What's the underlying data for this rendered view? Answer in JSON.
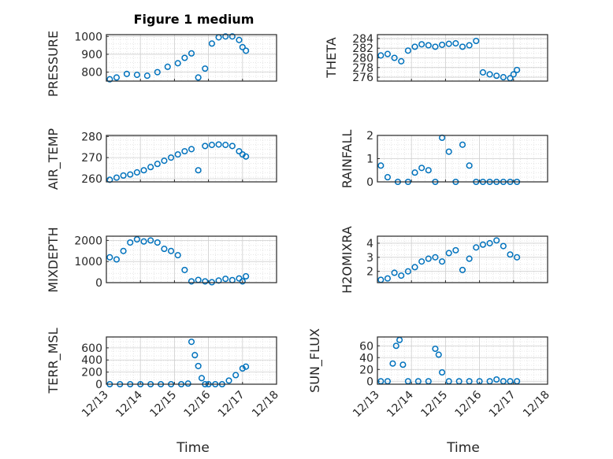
{
  "chart_data": [
    {
      "type": "scatter",
      "title": "Figure 1 medium",
      "ylabel": "PRESSURE",
      "ylim": [
        750,
        1010
      ],
      "yticks": [
        800,
        900,
        1000
      ],
      "xlim": [
        0,
        5
      ],
      "xticks": [
        "12/13",
        "12/14",
        "12/15",
        "12/16",
        "12/17",
        "12/18"
      ],
      "xticks_shown": false,
      "x": [
        0.1,
        0.3,
        0.6,
        0.9,
        1.2,
        1.5,
        1.8,
        2.1,
        2.3,
        2.5,
        2.7,
        2.9,
        3.1,
        3.3,
        3.5,
        3.7,
        3.9,
        4.0,
        4.1
      ],
      "values": [
        760,
        770,
        790,
        785,
        780,
        800,
        830,
        850,
        880,
        905,
        770,
        820,
        960,
        995,
        1000,
        1000,
        980,
        940,
        920
      ]
    },
    {
      "type": "scatter",
      "ylabel": "THETA",
      "ylim": [
        275.2,
        284.8
      ],
      "yticks": [
        276,
        278,
        280,
        282,
        284
      ],
      "xlim": [
        0,
        5
      ],
      "xticks": [
        "12/13",
        "12/14",
        "12/15",
        "12/16",
        "12/17",
        "12/18"
      ],
      "xticks_shown": false,
      "x": [
        0.1,
        0.3,
        0.5,
        0.7,
        0.9,
        1.1,
        1.3,
        1.5,
        1.7,
        1.9,
        2.1,
        2.3,
        2.5,
        2.7,
        2.9,
        3.1,
        3.3,
        3.5,
        3.7,
        3.9,
        4.0,
        4.1
      ],
      "values": [
        280.5,
        280.8,
        280.0,
        279.3,
        281.5,
        282.3,
        282.8,
        282.6,
        282.3,
        282.7,
        282.9,
        283.0,
        282.3,
        282.6,
        283.5,
        277.0,
        276.6,
        276.3,
        276.0,
        275.8,
        276.6,
        277.5
      ]
    },
    {
      "type": "scatter",
      "ylabel": "AIR_TEMP",
      "ylim": [
        258.5,
        280.5
      ],
      "yticks": [
        260,
        270,
        280
      ],
      "xlim": [
        0,
        5
      ],
      "xticks": [
        "12/13",
        "12/14",
        "12/15",
        "12/16",
        "12/17",
        "12/18"
      ],
      "xticks_shown": false,
      "x": [
        0.1,
        0.3,
        0.5,
        0.7,
        0.9,
        1.1,
        1.3,
        1.5,
        1.7,
        1.9,
        2.1,
        2.3,
        2.5,
        2.7,
        2.9,
        3.1,
        3.3,
        3.5,
        3.7,
        3.9,
        4.0,
        4.1
      ],
      "values": [
        259.5,
        260.5,
        261.5,
        262.0,
        263.0,
        264.0,
        265.5,
        267.0,
        268.5,
        270.0,
        271.5,
        273.0,
        274.0,
        264.0,
        275.5,
        276.0,
        276.2,
        276.0,
        275.5,
        273.0,
        271.5,
        270.5
      ]
    },
    {
      "type": "scatter",
      "ylabel": "RAINFALL",
      "ylim": [
        0,
        2
      ],
      "yticks": [
        0,
        1,
        2
      ],
      "xlim": [
        0,
        5
      ],
      "xticks": [
        "12/13",
        "12/14",
        "12/15",
        "12/16",
        "12/17",
        "12/18"
      ],
      "xticks_shown": false,
      "x": [
        0.1,
        0.3,
        0.6,
        0.9,
        1.1,
        1.3,
        1.5,
        1.7,
        1.9,
        2.1,
        2.3,
        2.5,
        2.7,
        2.9,
        3.1,
        3.3,
        3.5,
        3.7,
        3.9,
        4.1
      ],
      "values": [
        0.7,
        0.2,
        0.0,
        0.0,
        0.4,
        0.6,
        0.5,
        0.0,
        1.9,
        1.3,
        0.0,
        1.6,
        0.7,
        0.0,
        0.0,
        0.0,
        0.0,
        0.0,
        0.0,
        0.0
      ]
    },
    {
      "type": "scatter",
      "ylabel": "MIXDEPTH",
      "ylim": [
        0,
        2200
      ],
      "yticks": [
        0,
        1000,
        2000
      ],
      "xlim": [
        0,
        5
      ],
      "xticks": [
        "12/13",
        "12/14",
        "12/15",
        "12/16",
        "12/17",
        "12/18"
      ],
      "xticks_shown": false,
      "x": [
        0.1,
        0.3,
        0.5,
        0.7,
        0.9,
        1.1,
        1.3,
        1.5,
        1.7,
        1.9,
        2.1,
        2.3,
        2.5,
        2.7,
        2.9,
        3.1,
        3.3,
        3.5,
        3.7,
        3.9,
        4.0,
        4.1
      ],
      "values": [
        1200,
        1100,
        1500,
        1900,
        2050,
        1950,
        2000,
        1900,
        1600,
        1500,
        1300,
        600,
        60,
        130,
        60,
        20,
        100,
        180,
        120,
        200,
        60,
        300
      ]
    },
    {
      "type": "scatter",
      "ylabel": "H2OMIXRA",
      "ylim": [
        1.2,
        4.5
      ],
      "yticks": [
        2,
        3,
        4
      ],
      "xlim": [
        0,
        5
      ],
      "xticks": [
        "12/13",
        "12/14",
        "12/15",
        "12/16",
        "12/17",
        "12/18"
      ],
      "xticks_shown": false,
      "x": [
        0.1,
        0.3,
        0.5,
        0.7,
        0.9,
        1.1,
        1.3,
        1.5,
        1.7,
        1.9,
        2.1,
        2.3,
        2.5,
        2.7,
        2.9,
        3.1,
        3.3,
        3.5,
        3.7,
        3.9,
        4.1
      ],
      "values": [
        1.4,
        1.5,
        1.9,
        1.7,
        2.0,
        2.3,
        2.7,
        2.9,
        3.0,
        2.7,
        3.3,
        3.5,
        2.1,
        2.9,
        3.7,
        3.9,
        4.0,
        4.2,
        3.8,
        3.2,
        3.0
      ]
    },
    {
      "type": "scatter",
      "ylabel": "TERR_MSL",
      "ylim": [
        0,
        780
      ],
      "yticks": [
        0,
        200,
        400,
        600
      ],
      "xlim": [
        0,
        5
      ],
      "xticks": [
        "12/13",
        "12/14",
        "12/15",
        "12/16",
        "12/17",
        "12/18"
      ],
      "xticks_shown": true,
      "xlabel": "Time",
      "x": [
        0.1,
        0.4,
        0.7,
        1.0,
        1.3,
        1.6,
        1.9,
        2.2,
        2.4,
        2.5,
        2.6,
        2.7,
        2.8,
        2.9,
        3.0,
        3.2,
        3.4,
        3.6,
        3.8,
        4.0,
        4.1
      ],
      "values": [
        0,
        0,
        0,
        0,
        0,
        0,
        0,
        0,
        10,
        700,
        480,
        300,
        100,
        0,
        0,
        0,
        0,
        60,
        150,
        260,
        290
      ]
    },
    {
      "type": "scatter",
      "ylabel": "SUN_FLUX",
      "ylim": [
        -5,
        75
      ],
      "yticks": [
        0,
        20,
        40,
        60
      ],
      "xlim": [
        0,
        5
      ],
      "xticks": [
        "12/13",
        "12/14",
        "12/15",
        "12/16",
        "12/17",
        "12/18"
      ],
      "xticks_shown": true,
      "xlabel": "Time",
      "x": [
        0.1,
        0.3,
        0.45,
        0.55,
        0.65,
        0.75,
        0.9,
        1.2,
        1.5,
        1.7,
        1.8,
        1.9,
        2.1,
        2.4,
        2.7,
        3.0,
        3.3,
        3.5,
        3.7,
        3.9,
        4.1
      ],
      "values": [
        0,
        0,
        30,
        60,
        70,
        28,
        0,
        0,
        0,
        55,
        45,
        15,
        0,
        0,
        0,
        0,
        0,
        3,
        0,
        0,
        0
      ]
    }
  ]
}
